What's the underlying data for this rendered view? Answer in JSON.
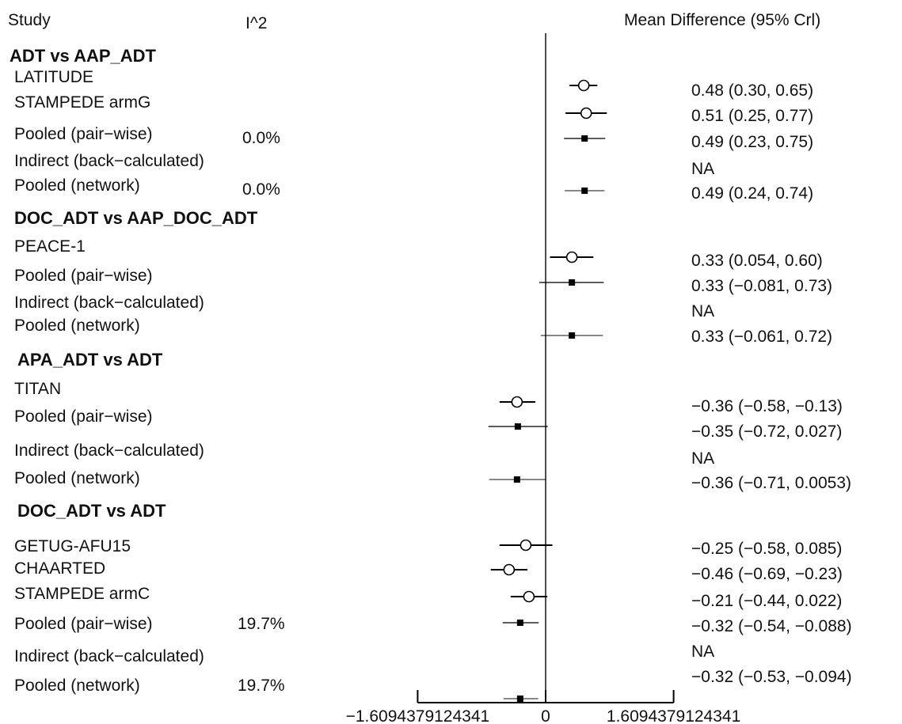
{
  "headers": {
    "study": "Study",
    "i2": "I^2",
    "effect": "Mean Difference (95% Crl)"
  },
  "chart_data": {
    "type": "forest",
    "title": "",
    "xlim": [
      -1.6094379124341,
      1.6094379124341
    ],
    "reference_line": 0,
    "x_ticks": [
      -1.6094379124341,
      0,
      1.6094379124341
    ],
    "x_tick_labels": [
      "−1.6094379124341",
      "0",
      "1.6094379124341"
    ],
    "groups": [
      {
        "title": "ADT vs AAP_ADT",
        "rows": [
          {
            "label": "LATITUDE",
            "kind": "study",
            "i2": "",
            "est": 0.48,
            "lo": 0.3,
            "hi": 0.65,
            "ci_text": "0.48 (0.30, 0.65)"
          },
          {
            "label": "STAMPEDE armG",
            "kind": "study",
            "i2": "",
            "est": 0.51,
            "lo": 0.25,
            "hi": 0.77,
            "ci_text": "0.51 (0.25, 0.77)"
          },
          {
            "label": "Pooled (pair−wise)",
            "kind": "pooled",
            "i2": "0.0%",
            "est": 0.49,
            "lo": 0.23,
            "hi": 0.75,
            "ci_text": "0.49 (0.23, 0.75)"
          },
          {
            "label": "Indirect (back−calculated)",
            "kind": "na",
            "i2": "",
            "est": null,
            "lo": null,
            "hi": null,
            "ci_text": "NA"
          },
          {
            "label": "Pooled (network)",
            "kind": "network",
            "i2": "0.0%",
            "est": 0.49,
            "lo": 0.24,
            "hi": 0.74,
            "ci_text": "0.49 (0.24, 0.74)"
          }
        ]
      },
      {
        "title": "DOC_ADT vs AAP_DOC_ADT",
        "rows": [
          {
            "label": "PEACE-1",
            "kind": "study",
            "i2": "",
            "est": 0.33,
            "lo": 0.054,
            "hi": 0.6,
            "ci_text": "0.33 (0.054, 0.60)"
          },
          {
            "label": "Pooled (pair−wise)",
            "kind": "pooled",
            "i2": "",
            "est": 0.33,
            "lo": -0.081,
            "hi": 0.73,
            "ci_text": "0.33 (−0.081, 0.73)"
          },
          {
            "label": "Indirect (back−calculated)",
            "kind": "na",
            "i2": "",
            "est": null,
            "lo": null,
            "hi": null,
            "ci_text": "NA"
          },
          {
            "label": "Pooled (network)",
            "kind": "network",
            "i2": "",
            "est": 0.33,
            "lo": -0.061,
            "hi": 0.72,
            "ci_text": "0.33 (−0.061, 0.72)"
          }
        ]
      },
      {
        "title": "APA_ADT vs ADT",
        "rows": [
          {
            "label": "TITAN",
            "kind": "study",
            "i2": "",
            "est": -0.36,
            "lo": -0.58,
            "hi": -0.13,
            "ci_text": "−0.36 (−0.58, −0.13)"
          },
          {
            "label": "Pooled (pair−wise)",
            "kind": "pooled",
            "i2": "",
            "est": -0.35,
            "lo": -0.72,
            "hi": 0.027,
            "ci_text": "−0.35 (−0.72, 0.027)"
          },
          {
            "label": "Indirect (back−calculated)",
            "kind": "na",
            "i2": "",
            "est": null,
            "lo": null,
            "hi": null,
            "ci_text": "NA"
          },
          {
            "label": "Pooled (network)",
            "kind": "network",
            "i2": "",
            "est": -0.36,
            "lo": -0.71,
            "hi": 0.0053,
            "ci_text": "−0.36 (−0.71, 0.0053)"
          }
        ]
      },
      {
        "title": "DOC_ADT vs ADT",
        "rows": [
          {
            "label": "GETUG-AFU15",
            "kind": "study",
            "i2": "",
            "est": -0.25,
            "lo": -0.58,
            "hi": 0.085,
            "ci_text": "−0.25 (−0.58, 0.085)"
          },
          {
            "label": "CHAARTED",
            "kind": "study",
            "i2": "",
            "est": -0.46,
            "lo": -0.69,
            "hi": -0.23,
            "ci_text": "−0.46 (−0.69, −0.23)"
          },
          {
            "label": "STAMPEDE armC",
            "kind": "study",
            "i2": "",
            "est": -0.21,
            "lo": -0.44,
            "hi": 0.022,
            "ci_text": "−0.21 (−0.44, 0.022)"
          },
          {
            "label": "Pooled (pair−wise)",
            "kind": "pooled",
            "i2": "19.7%",
            "est": -0.32,
            "lo": -0.54,
            "hi": -0.088,
            "ci_text": "−0.32 (−0.54, −0.088)"
          },
          {
            "label": "Indirect (back−calculated)",
            "kind": "na",
            "i2": "",
            "est": null,
            "lo": null,
            "hi": null,
            "ci_text": "NA"
          },
          {
            "label": "Pooled (network)",
            "kind": "network",
            "i2": "19.7%",
            "est": -0.32,
            "lo": -0.53,
            "hi": -0.094,
            "ci_text": "−0.32 (−0.53, −0.094)"
          }
        ]
      }
    ]
  }
}
